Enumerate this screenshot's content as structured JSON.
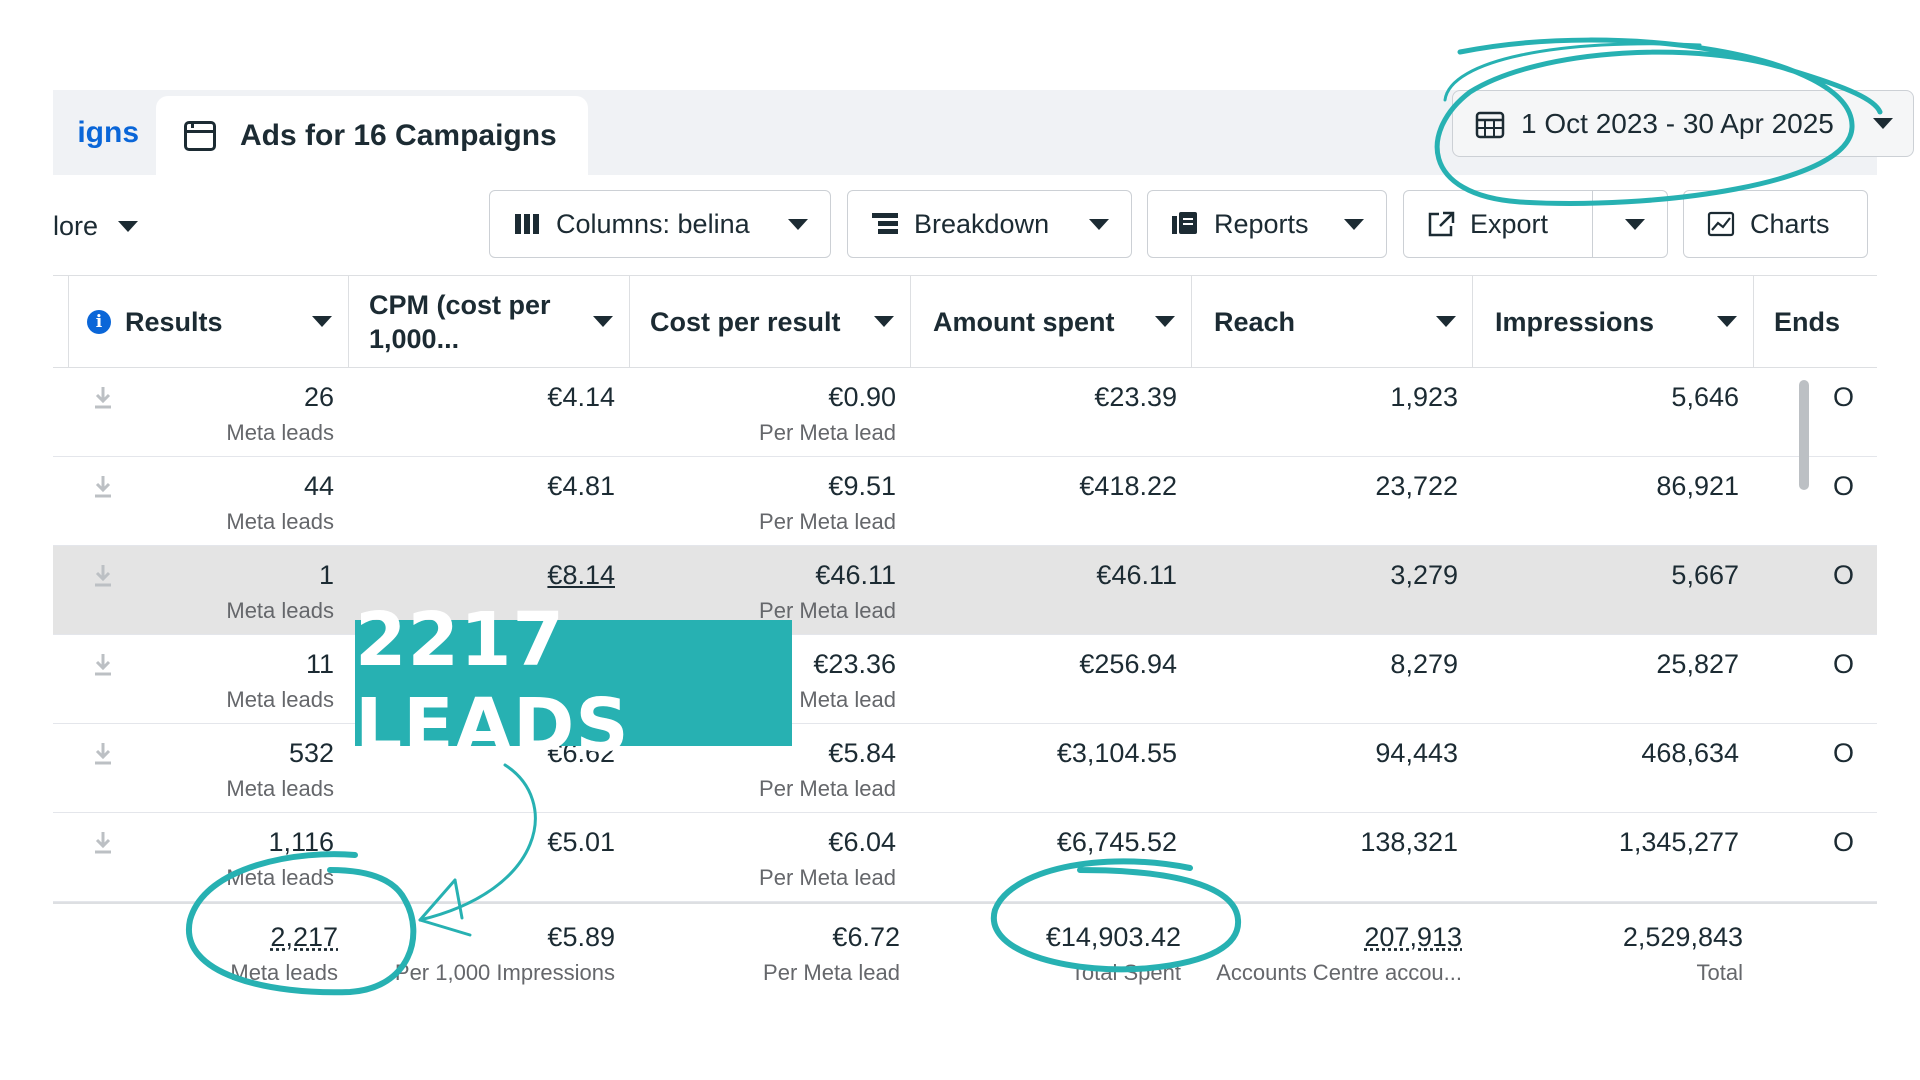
{
  "tabs": {
    "previous_label": "igns",
    "active_label": "Ads for 16 Campaigns",
    "date_range": "1 Oct 2023 - 30 Apr 2025"
  },
  "toolbar": {
    "more_label": "lore",
    "columns_label": "Columns: belina",
    "breakdown_label": "Breakdown",
    "reports_label": "Reports",
    "export_label": "Export",
    "charts_label": "Charts"
  },
  "table": {
    "headers": {
      "results": "Results",
      "cpm_line1": "CPM (cost per",
      "cpm_line2": "1,000...",
      "cost_per_result": "Cost per result",
      "amount_spent": "Amount spent",
      "reach": "Reach",
      "impressions": "Impressions",
      "ends": "Ends"
    },
    "rows": [
      {
        "results": "26",
        "results_sub": "Meta leads",
        "cpm": "€4.14",
        "cpr": "€0.90",
        "cpr_sub": "Per Meta lead",
        "spent": "€23.39",
        "reach": "1,923",
        "impressions": "5,646",
        "ends": "O"
      },
      {
        "results": "44",
        "results_sub": "Meta leads",
        "cpm": "€4.81",
        "cpr": "€9.51",
        "cpr_sub": "Per Meta lead",
        "spent": "€418.22",
        "reach": "23,722",
        "impressions": "86,921",
        "ends": "O"
      },
      {
        "results": "1",
        "results_sub": "Meta leads",
        "cpm": "€8.14",
        "cpr": "€46.11",
        "cpr_sub": "Per Meta lead",
        "spent": "€46.11",
        "reach": "3,279",
        "impressions": "5,667",
        "ends": "O"
      },
      {
        "results": "11",
        "results_sub": "Meta leads",
        "cpm": "",
        "cpr": "€23.36",
        "cpr_sub": "Meta lead",
        "spent": "€256.94",
        "reach": "8,279",
        "impressions": "25,827",
        "ends": "O"
      },
      {
        "results": "532",
        "results_sub": "Meta leads",
        "cpm": "€6.62",
        "cpr": "€5.84",
        "cpr_sub": "Per Meta lead",
        "spent": "€3,104.55",
        "reach": "94,443",
        "impressions": "468,634",
        "ends": "O"
      },
      {
        "results": "1,116",
        "results_sub": "Meta leads",
        "cpm": "€5.01",
        "cpr": "€6.04",
        "cpr_sub": "Per Meta lead",
        "spent": "€6,745.52",
        "reach": "138,321",
        "impressions": "1,345,277",
        "ends": "O"
      }
    ],
    "totals": {
      "results": "2,217",
      "results_sub": "Meta leads",
      "cpm": "€5.89",
      "cpm_sub": "Per 1,000 Impressions",
      "cpr": "€6.72",
      "cpr_sub": "Per Meta lead",
      "spent": "€14,903.42",
      "spent_sub": "Total Spent",
      "reach": "207,913",
      "reach_sub": "Accounts Centre accou...",
      "impressions": "2,529,843",
      "impressions_sub": "Total"
    }
  },
  "annotation": {
    "badge_text": "2217 LEADS",
    "badge_color": "#27b1b2",
    "circle_color": "#27b1b2"
  },
  "icons": [
    "calendar-icon",
    "tab-window-icon",
    "columns-icon",
    "breakdown-icon",
    "reports-icon",
    "export-icon",
    "charts-icon",
    "info-icon",
    "download-icon"
  ]
}
